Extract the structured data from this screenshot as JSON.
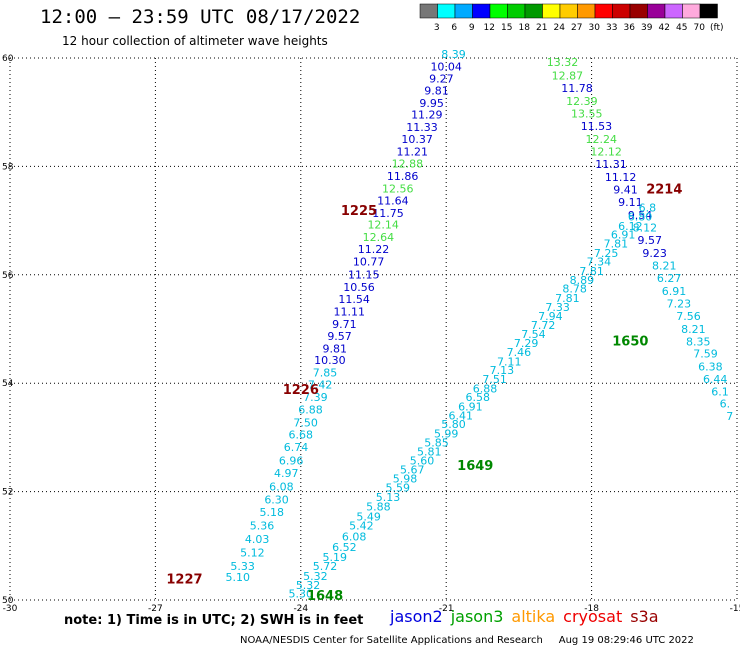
{
  "title": "12:00 – 23:59 UTC 08/17/2022",
  "subtitle": "12 hour collection of altimeter wave heights",
  "note": "note: 1) Time is in UTC; 2) SWH is in feet",
  "credit": "NOAA/NESDIS Center for Satellite Applications and Research     Aug 19 08:29:46 UTC 2022",
  "satellites": [
    {
      "name": "jason2",
      "color": "#0000dd"
    },
    {
      "name": "jason3",
      "color": "#00a000"
    },
    {
      "name": "altika",
      "color": "#ff9900"
    },
    {
      "name": "cryosat",
      "color": "#ee0000"
    },
    {
      "name": "s3a",
      "color": "#990000"
    }
  ],
  "colorbar": {
    "labels": [
      "3",
      "6",
      "9",
      "12",
      "15",
      "18",
      "21",
      "24",
      "27",
      "30",
      "33",
      "36",
      "39",
      "42",
      "45",
      "70",
      "(ft)"
    ],
    "colors": [
      "#777777",
      "#00ffff",
      "#00aaff",
      "#0000ff",
      "#00ff00",
      "#00cc00",
      "#009900",
      "#ffff00",
      "#ffcc00",
      "#ff9900",
      "#ff0000",
      "#cc0000",
      "#990000",
      "#990099",
      "#cc66ff",
      "#ffaadd",
      "#000000"
    ]
  },
  "chart_data": {
    "type": "scatter",
    "xlabel": "",
    "ylabel": "",
    "xlim": [
      -30,
      -15
    ],
    "ylim": [
      50,
      60
    ],
    "x_ticks": [
      -30,
      -27,
      -24,
      -21,
      -18,
      -15
    ],
    "y_ticks": [
      50,
      52,
      54,
      56,
      58,
      60
    ],
    "grid": true,
    "tick_colors": {
      "cyan": "#00bbdd",
      "blue": "#0000cc",
      "green": "#44dd44"
    },
    "track_labels": [
      {
        "text": "1227",
        "x": -26.4,
        "y": 50.3,
        "color": "#880000"
      },
      {
        "text": "1226",
        "x": -24.0,
        "y": 53.8,
        "color": "#880000"
      },
      {
        "text": "1225",
        "x": -22.8,
        "y": 57.1,
        "color": "#880000"
      },
      {
        "text": "2214",
        "x": -16.5,
        "y": 57.5,
        "color": "#880000"
      },
      {
        "text": "1648",
        "x": -23.5,
        "y": 50.0,
        "color": "#008800"
      },
      {
        "text": "1649",
        "x": -20.4,
        "y": 52.4,
        "color": "#008800"
      },
      {
        "text": "1650",
        "x": -17.2,
        "y": 54.7,
        "color": "#008800"
      }
    ],
    "tracks": [
      {
        "name": "track-1227-1225",
        "points": [
          {
            "x": -25.3,
            "y": 50.35,
            "v": "5.10",
            "c": "cyan"
          },
          {
            "x": -25.2,
            "y": 50.55,
            "v": "5.33",
            "c": "cyan"
          },
          {
            "x": -25.0,
            "y": 50.8,
            "v": "5.12",
            "c": "cyan"
          },
          {
            "x": -24.9,
            "y": 51.05,
            "v": "4.03",
            "c": "cyan"
          },
          {
            "x": -24.8,
            "y": 51.3,
            "v": "5.36",
            "c": "cyan"
          },
          {
            "x": -24.6,
            "y": 51.55,
            "v": "5.18",
            "c": "cyan"
          },
          {
            "x": -24.5,
            "y": 51.78,
            "v": "6.30",
            "c": "cyan"
          },
          {
            "x": -24.4,
            "y": 52.02,
            "v": "6.08",
            "c": "cyan"
          },
          {
            "x": -24.3,
            "y": 52.27,
            "v": "4.97",
            "c": "cyan"
          },
          {
            "x": -24.2,
            "y": 52.5,
            "v": "6.96",
            "c": "cyan"
          },
          {
            "x": -24.1,
            "y": 52.75,
            "v": "6.74",
            "c": "cyan"
          },
          {
            "x": -24.0,
            "y": 52.98,
            "v": "6.68",
            "c": "cyan"
          },
          {
            "x": -23.9,
            "y": 53.2,
            "v": "7.50",
            "c": "cyan"
          },
          {
            "x": -23.8,
            "y": 53.44,
            "v": "6.88",
            "c": "cyan"
          },
          {
            "x": -23.7,
            "y": 53.67,
            "v": "7.39",
            "c": "cyan"
          },
          {
            "x": -23.6,
            "y": 53.9,
            "v": "7.42",
            "c": "cyan"
          },
          {
            "x": -23.5,
            "y": 54.12,
            "v": "7.85",
            "c": "cyan"
          },
          {
            "x": -23.4,
            "y": 54.35,
            "v": "10.30",
            "c": "blue"
          },
          {
            "x": -23.3,
            "y": 54.57,
            "v": "9.81",
            "c": "blue"
          },
          {
            "x": -23.2,
            "y": 54.8,
            "v": "9.57",
            "c": "blue"
          },
          {
            "x": -23.1,
            "y": 55.02,
            "v": "9.71",
            "c": "blue"
          },
          {
            "x": -23.0,
            "y": 55.25,
            "v": "11.11",
            "c": "blue"
          },
          {
            "x": -22.9,
            "y": 55.48,
            "v": "11.54",
            "c": "blue"
          },
          {
            "x": -22.8,
            "y": 55.7,
            "v": "10.56",
            "c": "blue"
          },
          {
            "x": -22.7,
            "y": 55.93,
            "v": "11.15",
            "c": "blue"
          },
          {
            "x": -22.6,
            "y": 56.17,
            "v": "10.77",
            "c": "blue"
          },
          {
            "x": -22.5,
            "y": 56.4,
            "v": "11.22",
            "c": "blue"
          },
          {
            "x": -22.4,
            "y": 56.62,
            "v": "12.64",
            "c": "green"
          },
          {
            "x": -22.3,
            "y": 56.85,
            "v": "12.14",
            "c": "green"
          },
          {
            "x": -22.2,
            "y": 57.07,
            "v": "11.75",
            "c": "blue"
          },
          {
            "x": -22.1,
            "y": 57.3,
            "v": "11.64",
            "c": "blue"
          },
          {
            "x": -22.0,
            "y": 57.52,
            "v": "12.56",
            "c": "green"
          },
          {
            "x": -21.9,
            "y": 57.75,
            "v": "11.86",
            "c": "blue"
          },
          {
            "x": -21.8,
            "y": 57.98,
            "v": "12.88",
            "c": "green"
          },
          {
            "x": -21.7,
            "y": 58.2,
            "v": "11.21",
            "c": "blue"
          },
          {
            "x": -21.6,
            "y": 58.43,
            "v": "10.37",
            "c": "blue"
          },
          {
            "x": -21.5,
            "y": 58.65,
            "v": "11.33",
            "c": "blue"
          },
          {
            "x": -21.4,
            "y": 58.88,
            "v": "11.29",
            "c": "blue"
          },
          {
            "x": -21.3,
            "y": 59.1,
            "v": "9.95",
            "c": "blue"
          },
          {
            "x": -21.2,
            "y": 59.33,
            "v": "9.81",
            "c": "blue"
          },
          {
            "x": -21.1,
            "y": 59.55,
            "v": "9.27",
            "c": "blue"
          },
          {
            "x": -21.0,
            "y": 59.77,
            "v": "10.04",
            "c": "blue"
          },
          {
            "x": -20.85,
            "y": 60.0,
            "v": "8.39",
            "c": "cyan"
          }
        ]
      },
      {
        "name": "track-2214",
        "points": [
          {
            "x": -18.6,
            "y": 59.85,
            "v": "13.32",
            "c": "green"
          },
          {
            "x": -18.5,
            "y": 59.6,
            "v": "12.87",
            "c": "green"
          },
          {
            "x": -18.3,
            "y": 59.37,
            "v": "11.78",
            "c": "blue"
          },
          {
            "x": -18.2,
            "y": 59.13,
            "v": "12.39",
            "c": "green"
          },
          {
            "x": -18.1,
            "y": 58.9,
            "v": "13.55",
            "c": "green"
          },
          {
            "x": -17.9,
            "y": 58.67,
            "v": "11.53",
            "c": "blue"
          },
          {
            "x": -17.8,
            "y": 58.43,
            "v": "12.24",
            "c": "green"
          },
          {
            "x": -17.7,
            "y": 58.2,
            "v": "12.12",
            "c": "green"
          },
          {
            "x": -17.6,
            "y": 57.97,
            "v": "11.31",
            "c": "blue"
          },
          {
            "x": -17.4,
            "y": 57.73,
            "v": "11.12",
            "c": "blue"
          },
          {
            "x": -17.3,
            "y": 57.5,
            "v": "9.41",
            "c": "blue"
          },
          {
            "x": -17.2,
            "y": 57.27,
            "v": "9.11",
            "c": "blue"
          },
          {
            "x": -17.0,
            "y": 57.03,
            "v": "9.54",
            "c": "blue"
          },
          {
            "x": -16.9,
            "y": 56.8,
            "v": "8.12",
            "c": "cyan"
          },
          {
            "x": -16.8,
            "y": 56.57,
            "v": "9.57",
            "c": "blue"
          },
          {
            "x": -16.7,
            "y": 56.33,
            "v": "9.23",
            "c": "blue"
          },
          {
            "x": -16.5,
            "y": 56.1,
            "v": "8.21",
            "c": "cyan"
          },
          {
            "x": -16.4,
            "y": 55.87,
            "v": "6.27",
            "c": "cyan"
          },
          {
            "x": -16.3,
            "y": 55.63,
            "v": "6.91",
            "c": "cyan"
          },
          {
            "x": -16.2,
            "y": 55.4,
            "v": "7.23",
            "c": "cyan"
          },
          {
            "x": -16.0,
            "y": 55.17,
            "v": "7.56",
            "c": "cyan"
          },
          {
            "x": -15.9,
            "y": 54.93,
            "v": "8.21",
            "c": "cyan"
          },
          {
            "x": -15.8,
            "y": 54.7,
            "v": "8.35",
            "c": "cyan"
          },
          {
            "x": -15.65,
            "y": 54.47,
            "v": "7.59",
            "c": "cyan"
          },
          {
            "x": -15.55,
            "y": 54.23,
            "v": "6.38",
            "c": "cyan"
          },
          {
            "x": -15.45,
            "y": 54.0,
            "v": "6.44",
            "c": "cyan"
          },
          {
            "x": -15.35,
            "y": 53.77,
            "v": "6.1",
            "c": "cyan"
          },
          {
            "x": -15.25,
            "y": 53.55,
            "v": "6.",
            "c": "cyan"
          },
          {
            "x": -15.15,
            "y": 53.32,
            "v": "7",
            "c": "cyan"
          }
        ]
      },
      {
        "name": "track-1648-1650",
        "points": [
          {
            "x": -24.0,
            "y": 50.05,
            "v": "5.30",
            "c": "cyan"
          },
          {
            "x": -23.85,
            "y": 50.2,
            "v": "5.32",
            "c": "cyan"
          },
          {
            "x": -23.7,
            "y": 50.37,
            "v": "5.32",
            "c": "cyan"
          },
          {
            "x": -23.5,
            "y": 50.55,
            "v": "5.72",
            "c": "cyan"
          },
          {
            "x": -23.3,
            "y": 50.72,
            "v": "5.19",
            "c": "cyan"
          },
          {
            "x": -23.1,
            "y": 50.9,
            "v": "6.52",
            "c": "cyan"
          },
          {
            "x": -22.9,
            "y": 51.1,
            "v": "6.08",
            "c": "cyan"
          },
          {
            "x": -22.75,
            "y": 51.3,
            "v": "5.42",
            "c": "cyan"
          },
          {
            "x": -22.6,
            "y": 51.47,
            "v": "5.49",
            "c": "cyan"
          },
          {
            "x": -22.4,
            "y": 51.65,
            "v": "5.88",
            "c": "cyan"
          },
          {
            "x": -22.2,
            "y": 51.83,
            "v": "5.13",
            "c": "cyan"
          },
          {
            "x": -22.0,
            "y": 52.0,
            "v": "5.59",
            "c": "cyan"
          },
          {
            "x": -21.85,
            "y": 52.17,
            "v": "5.98",
            "c": "cyan"
          },
          {
            "x": -21.7,
            "y": 52.33,
            "v": "5.67",
            "c": "cyan"
          },
          {
            "x": -21.5,
            "y": 52.5,
            "v": "5.60",
            "c": "cyan"
          },
          {
            "x": -21.35,
            "y": 52.67,
            "v": "5.81",
            "c": "cyan"
          },
          {
            "x": -21.2,
            "y": 52.83,
            "v": "5.85",
            "c": "cyan"
          },
          {
            "x": -21.0,
            "y": 53.0,
            "v": "5.99",
            "c": "cyan"
          },
          {
            "x": -20.85,
            "y": 53.17,
            "v": "5.80",
            "c": "cyan"
          },
          {
            "x": -20.7,
            "y": 53.33,
            "v": "6.41",
            "c": "cyan"
          },
          {
            "x": -20.5,
            "y": 53.5,
            "v": "6.91",
            "c": "cyan"
          },
          {
            "x": -20.35,
            "y": 53.67,
            "v": "6.58",
            "c": "cyan"
          },
          {
            "x": -20.2,
            "y": 53.83,
            "v": "6.88",
            "c": "cyan"
          },
          {
            "x": -20.0,
            "y": 54.0,
            "v": "7.51",
            "c": "cyan"
          },
          {
            "x": -19.85,
            "y": 54.17,
            "v": "7.13",
            "c": "cyan"
          },
          {
            "x": -19.7,
            "y": 54.33,
            "v": "7.11",
            "c": "cyan"
          },
          {
            "x": -19.5,
            "y": 54.5,
            "v": "7.46",
            "c": "cyan"
          },
          {
            "x": -19.35,
            "y": 54.67,
            "v": "7.29",
            "c": "cyan"
          },
          {
            "x": -19.2,
            "y": 54.83,
            "v": "7.54",
            "c": "cyan"
          },
          {
            "x": -19.0,
            "y": 55.0,
            "v": "7.72",
            "c": "cyan"
          },
          {
            "x": -18.85,
            "y": 55.17,
            "v": "7.94",
            "c": "cyan"
          },
          {
            "x": -18.7,
            "y": 55.33,
            "v": "7.33",
            "c": "cyan"
          },
          {
            "x": -18.5,
            "y": 55.5,
            "v": "7.81",
            "c": "cyan"
          },
          {
            "x": -18.35,
            "y": 55.67,
            "v": "8.78",
            "c": "cyan"
          },
          {
            "x": -18.2,
            "y": 55.83,
            "v": "8.89",
            "c": "cyan"
          },
          {
            "x": -18.0,
            "y": 56.0,
            "v": "7.81",
            "c": "cyan"
          },
          {
            "x": -17.85,
            "y": 56.17,
            "v": "7.34",
            "c": "cyan"
          },
          {
            "x": -17.7,
            "y": 56.33,
            "v": "7.25",
            "c": "cyan"
          },
          {
            "x": -17.5,
            "y": 56.5,
            "v": "7.81",
            "c": "cyan"
          },
          {
            "x": -17.35,
            "y": 56.67,
            "v": "6.91",
            "c": "cyan"
          },
          {
            "x": -17.2,
            "y": 56.83,
            "v": "6.12",
            "c": "cyan"
          },
          {
            "x": -17.0,
            "y": 57.0,
            "v": "6.80",
            "c": "cyan"
          },
          {
            "x": -16.85,
            "y": 57.17,
            "v": "6.8",
            "c": "cyan"
          }
        ]
      }
    ]
  }
}
